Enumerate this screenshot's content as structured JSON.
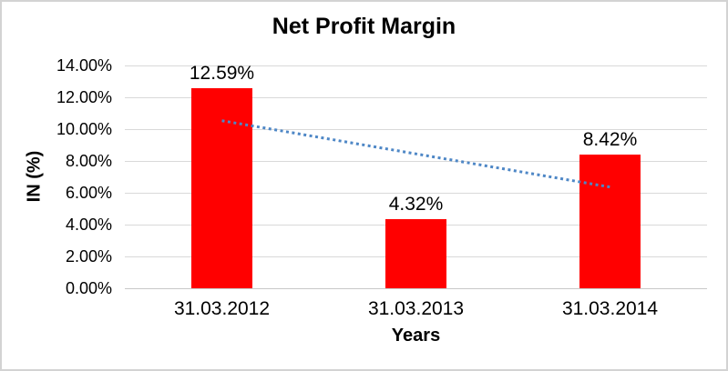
{
  "chart_data": {
    "type": "bar",
    "title": "Net Profit Margin",
    "categories": [
      "31.03.2012",
      "31.03.2013",
      "31.03.2014"
    ],
    "values": [
      12.59,
      4.32,
      8.42
    ],
    "data_labels": [
      "12.59%",
      "4.32%",
      "8.42%"
    ],
    "xlabel": "Years",
    "ylabel": "IN (%)",
    "ylim": [
      0,
      14
    ],
    "ytick_step": 2,
    "ytick_labels": [
      "0.00%",
      "2.00%",
      "4.00%",
      "6.00%",
      "8.00%",
      "10.00%",
      "12.00%",
      "14.00%"
    ],
    "grid": true,
    "legend": "none",
    "trendline": {
      "type": "linear",
      "style": "dotted",
      "start_value": 10.53,
      "end_value": 6.36
    },
    "colors": {
      "bar": "#ff0000",
      "gridline": "#d9d9d9",
      "axis_line": "#c8c8c8",
      "trendline": "#4e87c6",
      "text": "#000000",
      "frame_border": "#d3d3d3",
      "background": "#ffffff"
    }
  }
}
